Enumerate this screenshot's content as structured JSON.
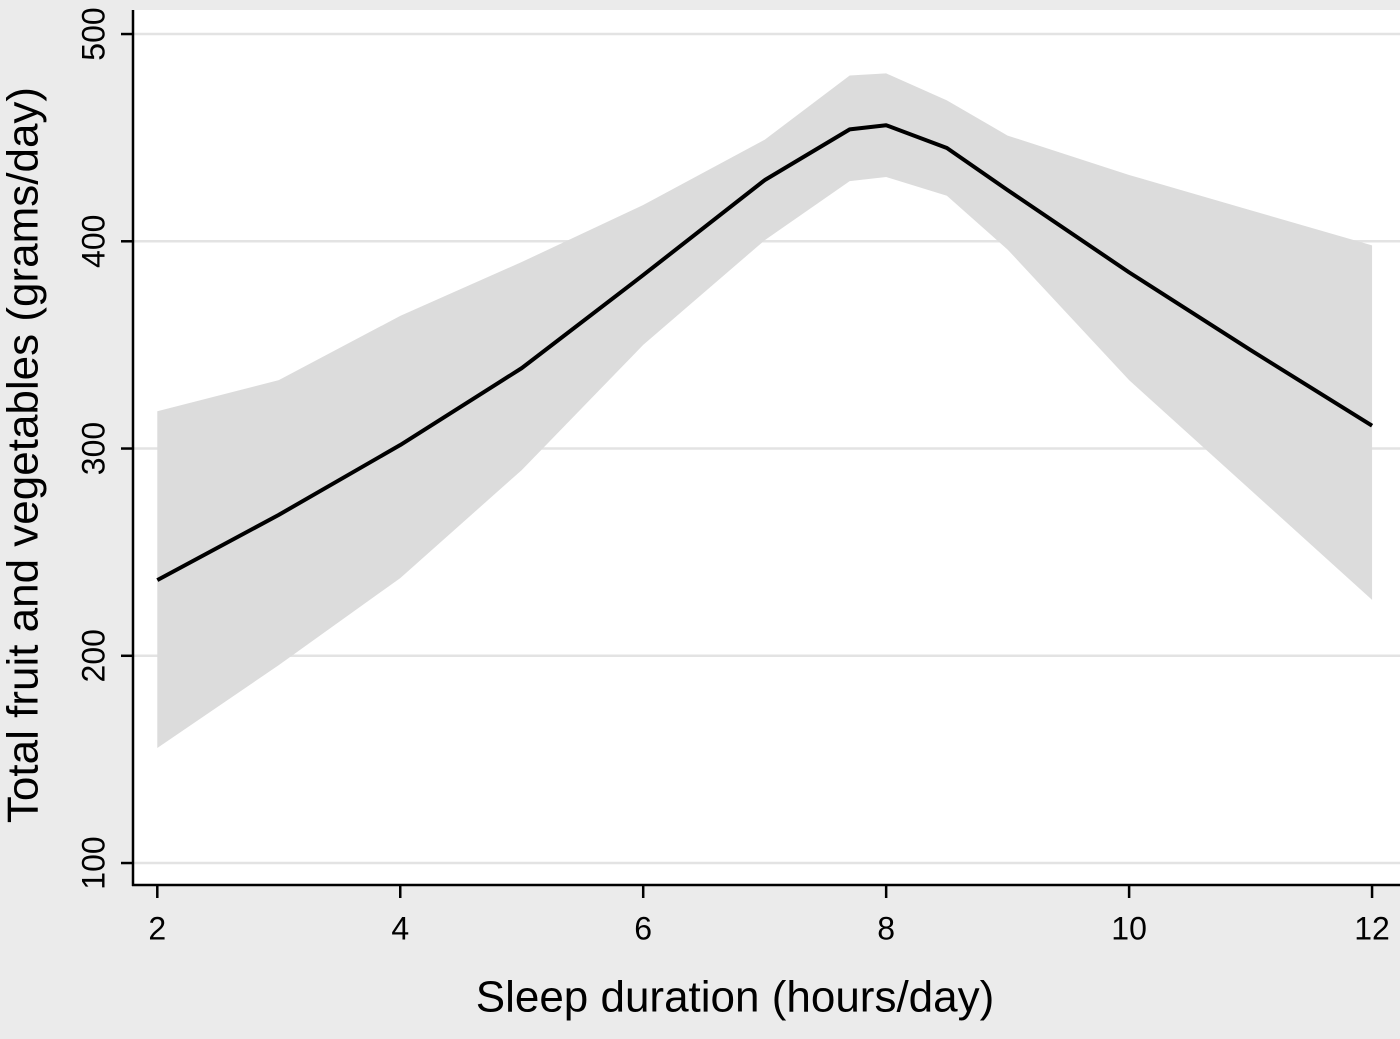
{
  "chart_data": {
    "type": "line",
    "x_label": "Sleep duration (hours/day)",
    "y_label": "Total fruit and vegetables (grams/day)",
    "x": [
      2,
      3,
      4,
      5,
      6,
      7,
      7.7,
      8,
      8.5,
      9,
      10,
      11,
      12
    ],
    "series": [
      {
        "color": "#000000",
        "values": [
          236.5,
          268,
          301.7,
          338.8,
          383.7,
          429.5,
          454,
          456,
          445,
          424.7,
          385,
          347.5,
          311
        ]
      }
    ],
    "band": {
      "color": "#dcdcdc",
      "lower": [
        155.5,
        195.5,
        237.5,
        289.6,
        350,
        400.5,
        429,
        431,
        422,
        396,
        333,
        280,
        227
      ],
      "upper": [
        318,
        333,
        364,
        390,
        417.5,
        449,
        480,
        481,
        468,
        451,
        432,
        415,
        398
      ]
    },
    "xlim": [
      1.8,
      12.23
    ],
    "ylim": [
      89.4,
      511.6
    ],
    "xticks": [
      2,
      4,
      6,
      8,
      10,
      12
    ],
    "yticks": [
      100,
      200,
      300,
      400,
      500
    ],
    "grid": true
  }
}
